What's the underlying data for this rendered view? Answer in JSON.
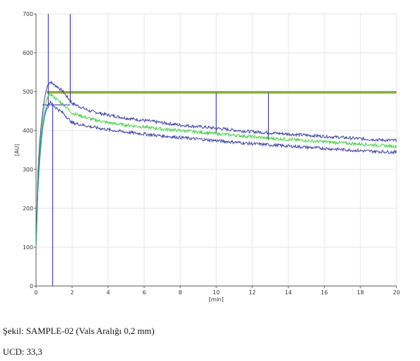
{
  "chart_data": {
    "type": "line",
    "xlabel": "[min]",
    "ylabel": "[AU]",
    "xlim": [
      0,
      20
    ],
    "ylim": [
      0,
      700
    ],
    "x_ticks": [
      0,
      2,
      4,
      6,
      8,
      10,
      12,
      14,
      16,
      18,
      20
    ],
    "y_ticks": [
      0,
      100,
      200,
      300,
      400,
      500,
      600,
      700
    ],
    "grid": true,
    "series": [
      {
        "role": "upper",
        "color": "#3a3f9e",
        "x": [
          0,
          0.1,
          0.2,
          0.3,
          0.4,
          0.5,
          0.6,
          0.7,
          0.8,
          0.9,
          1.0,
          1.2,
          1.5,
          2,
          3,
          4,
          5,
          6,
          7,
          8,
          9,
          10,
          11,
          12,
          13,
          14,
          15,
          16,
          17,
          18,
          19,
          20
        ],
        "y": [
          100,
          290,
          370,
          420,
          460,
          490,
          510,
          522,
          525,
          521,
          518,
          512,
          500,
          470,
          450,
          440,
          432,
          426,
          420,
          414,
          410,
          406,
          401,
          397,
          394,
          391,
          388,
          385,
          382,
          379,
          376,
          374
        ]
      },
      {
        "role": "mean",
        "color": "#44cc44",
        "x": [
          0,
          0.1,
          0.2,
          0.3,
          0.4,
          0.5,
          0.6,
          0.7,
          0.8,
          0.9,
          1.0,
          1.2,
          1.5,
          2,
          3,
          4,
          5,
          6,
          7,
          8,
          9,
          10,
          11,
          12,
          13,
          14,
          15,
          16,
          17,
          18,
          19,
          20
        ],
        "y": [
          100,
          270,
          350,
          400,
          440,
          465,
          482,
          490,
          493,
          490,
          486,
          478,
          468,
          445,
          430,
          420,
          414,
          409,
          404,
          400,
          396,
          392,
          388,
          384,
          380,
          377,
          374,
          371,
          368,
          365,
          362,
          359
        ]
      },
      {
        "role": "lower",
        "color": "#3a3f9e",
        "x": [
          0,
          0.1,
          0.2,
          0.3,
          0.4,
          0.5,
          0.6,
          0.7,
          0.8,
          0.9,
          1.0,
          1.2,
          1.5,
          2,
          3,
          4,
          5,
          6,
          7,
          8,
          9,
          10,
          11,
          12,
          13,
          14,
          15,
          16,
          17,
          18,
          19,
          20
        ],
        "y": [
          100,
          250,
          330,
          380,
          420,
          445,
          462,
          470,
          472,
          468,
          463,
          455,
          445,
          420,
          410,
          402,
          396,
          391,
          386,
          382,
          378,
          374,
          370,
          366,
          363,
          360,
          357,
          354,
          351,
          348,
          346,
          344
        ]
      },
      {
        "role": "teal-start",
        "color": "#2a9a9a",
        "x": [
          0,
          0.1,
          0.2,
          0.3,
          0.4,
          0.5,
          0.6,
          0.7
        ],
        "y": [
          100,
          240,
          320,
          375,
          415,
          440,
          456,
          462
        ]
      }
    ],
    "reference_lines": {
      "horizontal": [
        {
          "y": 500,
          "color": "#e05050",
          "x_from": 0.6,
          "x_to": 20
        },
        {
          "y": 498,
          "color": "#44cc44",
          "x_from": 0.6,
          "x_to": 20
        },
        {
          "y": 496,
          "color": "#c8a020",
          "x_from": 0.6,
          "x_to": 20
        },
        {
          "y": 466,
          "color": "#3a3f9e",
          "x_from": 0.35,
          "x_to": 1.9
        }
      ],
      "vertical": [
        {
          "x": 0.68,
          "color": "#3a3f9e",
          "y_from": 460,
          "y_to": 700
        },
        {
          "x": 0.92,
          "color": "#3a3f9e",
          "y_from": 0,
          "y_to": 470
        },
        {
          "x": 1.9,
          "color": "#3a3f9e",
          "y_from": 470,
          "y_to": 700
        },
        {
          "x": 10.0,
          "color": "#3a3f9e",
          "y_from": 395,
          "y_to": 497
        },
        {
          "x": 12.9,
          "color": "#3a3f9e",
          "y_from": 375,
          "y_to": 497
        }
      ]
    }
  },
  "caption": {
    "line1": "Şekil: SAMPLE-02 (Vals Aralığı 0,2 mm)",
    "line2": "UCD: 33,3"
  }
}
